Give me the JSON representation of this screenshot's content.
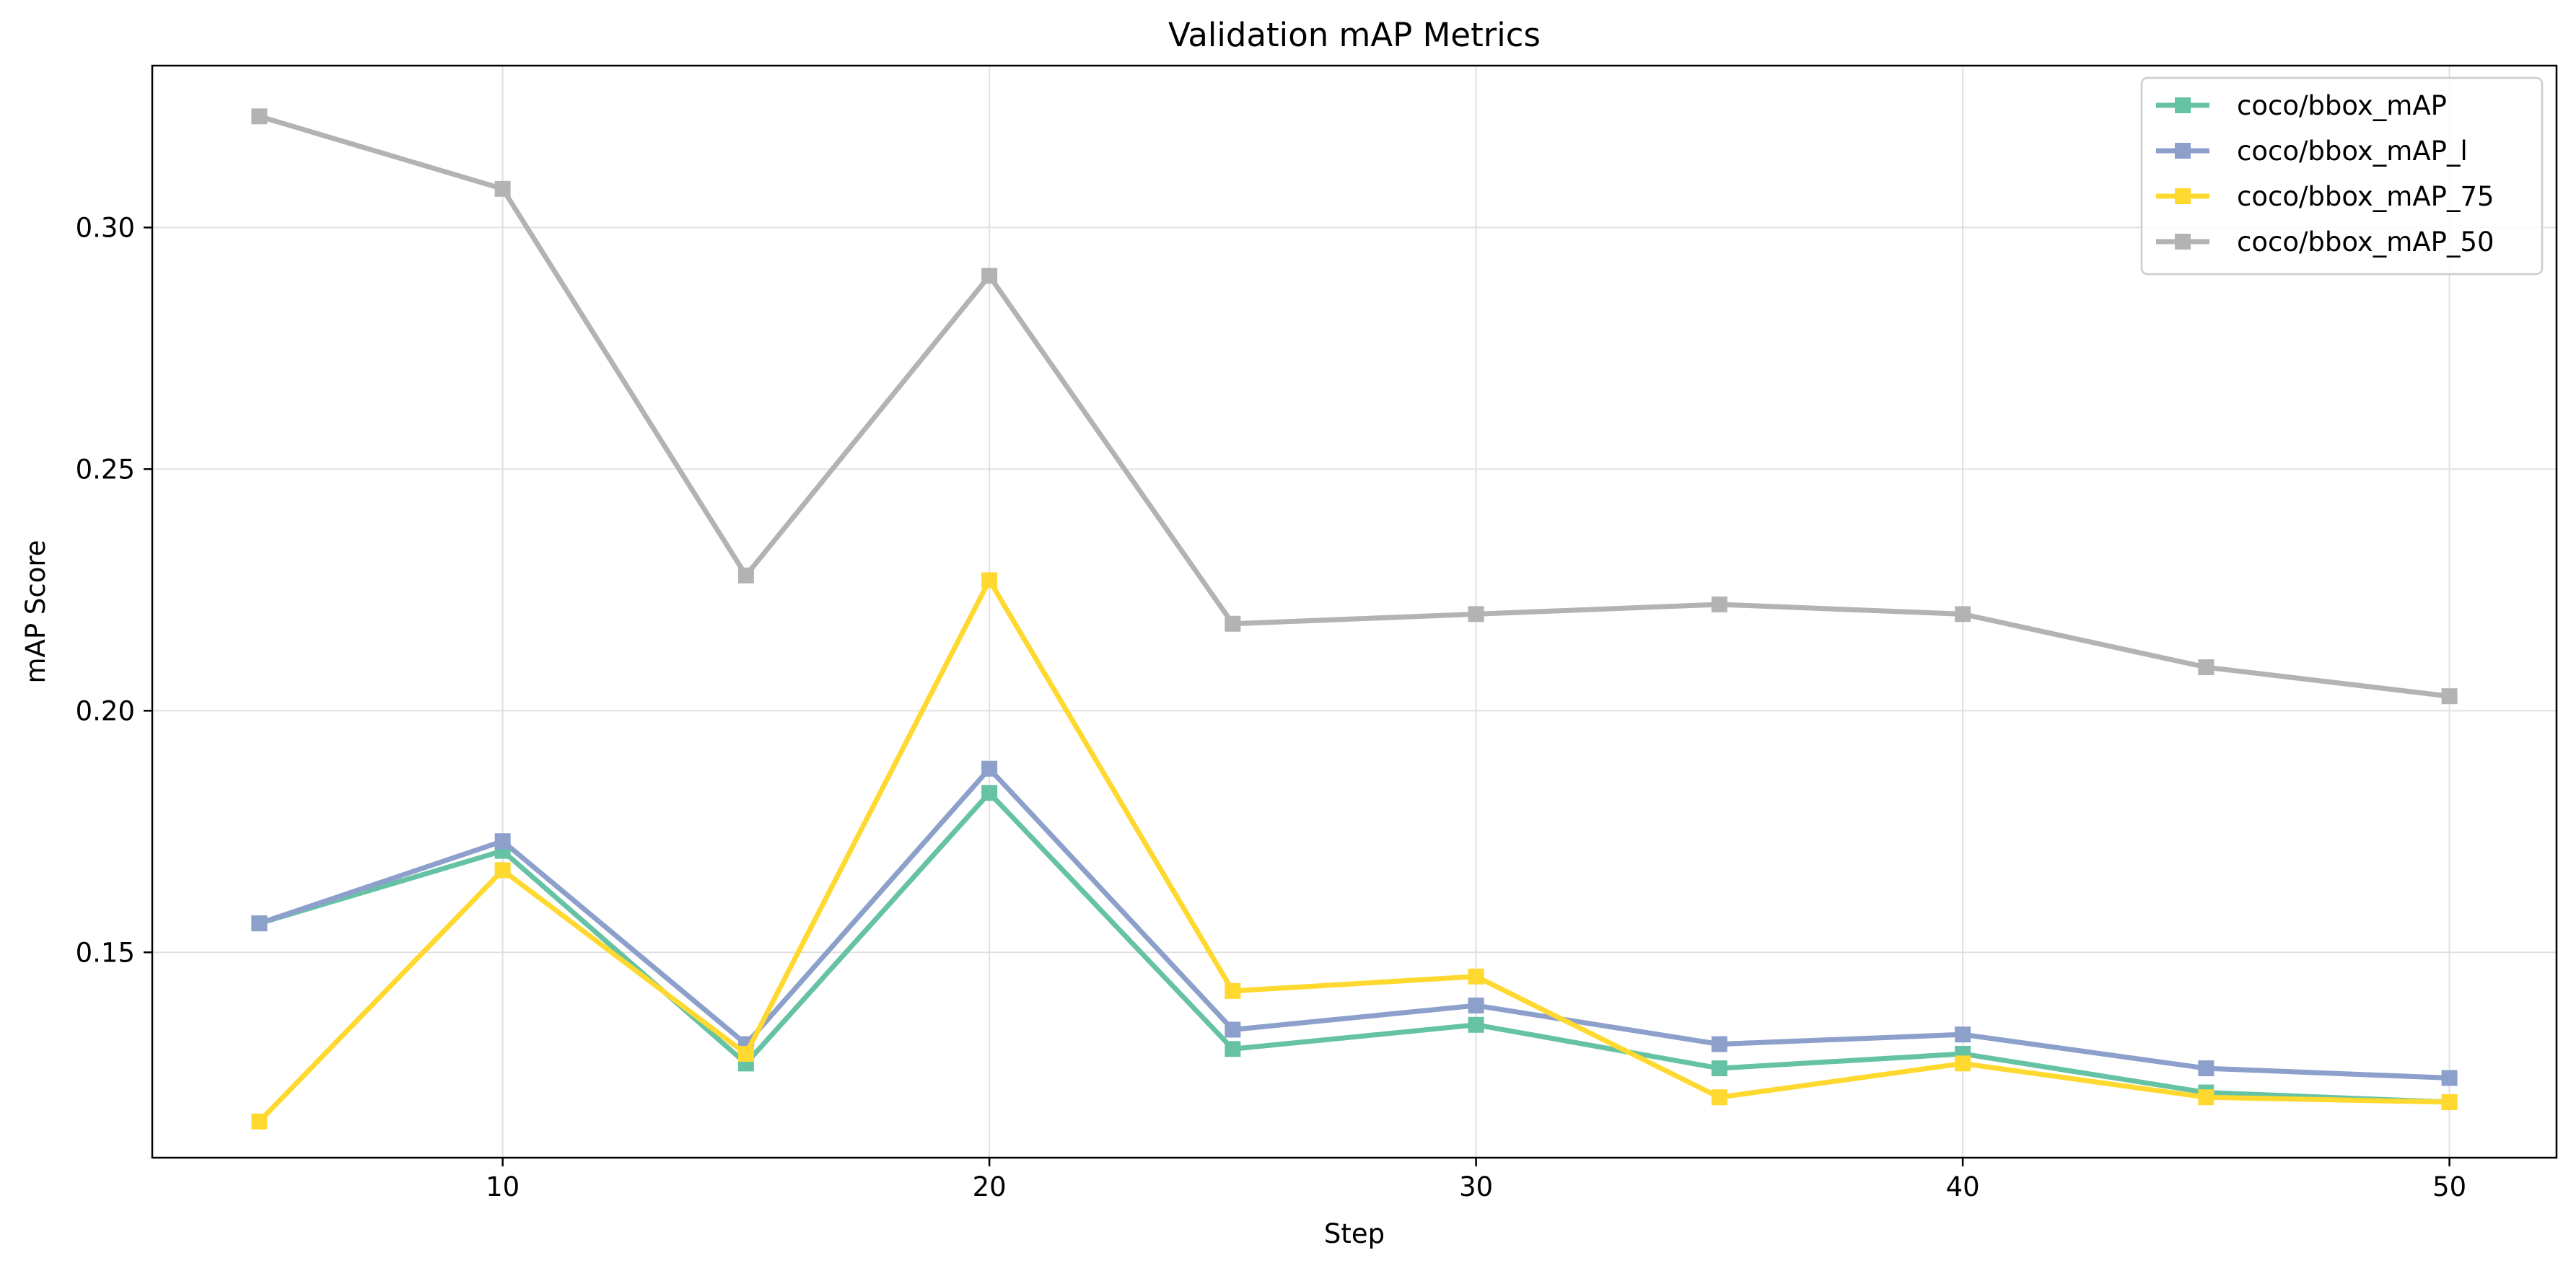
{
  "chart_data": {
    "type": "line",
    "title": "Validation mAP Metrics",
    "xlabel": "Step",
    "ylabel": "mAP Score",
    "xlim": [
      2.8,
      52.2
    ],
    "ylim": [
      0.1075,
      0.3335
    ],
    "x_ticks": [
      10,
      20,
      30,
      40,
      50
    ],
    "x_tick_labels": [
      "10",
      "20",
      "30",
      "40",
      "50"
    ],
    "y_ticks": [
      0.15,
      0.2,
      0.25,
      0.3
    ],
    "y_tick_labels": [
      "0.15",
      "0.20",
      "0.25",
      "0.30"
    ],
    "grid": true,
    "legend_position": "top-right",
    "marker": "square",
    "x": [
      5,
      10,
      15,
      20,
      25,
      30,
      35,
      40,
      45,
      50
    ],
    "series": [
      {
        "name": "coco/bbox_mAP",
        "color": "#66c2a5",
        "values": [
          0.156,
          0.171,
          0.127,
          0.183,
          0.13,
          0.135,
          0.126,
          0.129,
          0.121,
          0.119
        ]
      },
      {
        "name": "coco/bbox_mAP_l",
        "color": "#8da0cb",
        "values": [
          0.156,
          0.173,
          0.131,
          0.188,
          0.134,
          0.139,
          0.131,
          0.133,
          0.126,
          0.124
        ]
      },
      {
        "name": "coco/bbox_mAP_75",
        "color": "#ffd92f",
        "values": [
          0.115,
          0.167,
          0.129,
          0.227,
          0.142,
          0.145,
          0.12,
          0.127,
          0.12,
          0.119
        ]
      },
      {
        "name": "coco/bbox_mAP_50",
        "color": "#b3b3b3",
        "values": [
          0.323,
          0.308,
          0.228,
          0.29,
          0.218,
          0.22,
          0.222,
          0.22,
          0.209,
          0.203
        ]
      }
    ]
  }
}
